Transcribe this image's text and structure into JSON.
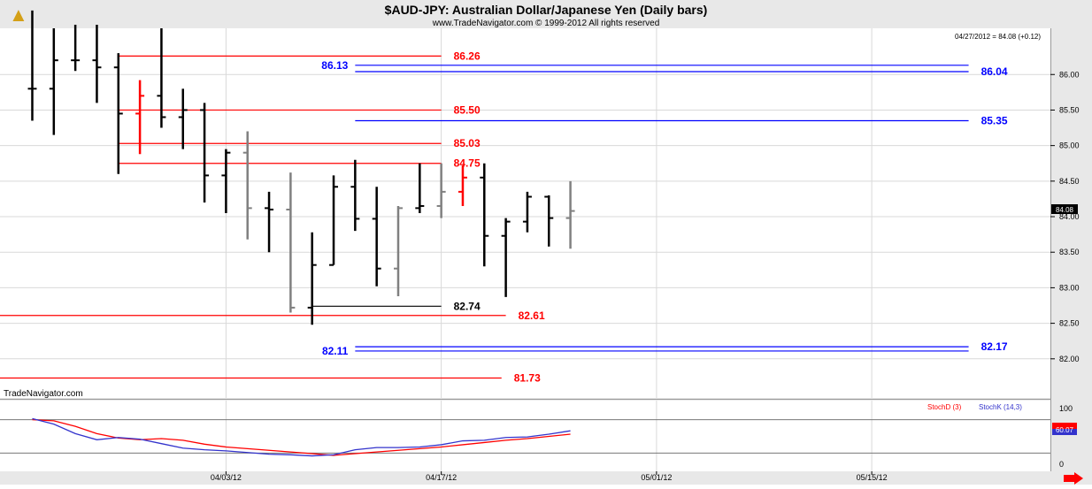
{
  "header": {
    "title": "$AUD-JPY:  Australian Dollar/Japanese Yen  (Daily bars)",
    "copyright": "www.TradeNavigator.com © 1999-2012 All rights reserved",
    "quote": "04/27/2012 = 84.08 (+0.12)",
    "watermark": "TradeNavigator.com",
    "last_price_tag": "84.08"
  },
  "colors": {
    "background": "#ffffff",
    "frame": "#e8e8e8",
    "bar_black": "#000000",
    "bar_gray": "#808080",
    "bar_red": "#ff0000",
    "level_red": "#ff0000",
    "level_blue": "#0000ff",
    "stoch_d": "#ff0000",
    "stoch_k": "#3333cc"
  },
  "chart_data": [
    {
      "type": "ohlc",
      "y_axis": {
        "range": [
          81.45,
          86.65
        ],
        "ticks": [
          "82.00",
          "82.50",
          "83.00",
          "83.50",
          "84.00",
          "84.50",
          "85.00",
          "85.50",
          "86.00"
        ]
      },
      "x_axis": {
        "tick_labels": [
          "04/03/12",
          "04/17/12",
          "05/01/12",
          "05/15/12"
        ],
        "tick_index": [
          9,
          19,
          29,
          39
        ],
        "index_range": [
          -1.5,
          47.3
        ]
      },
      "bars": [
        {
          "o": 85.8,
          "h": 86.9,
          "l": 85.35,
          "c": 85.8,
          "color": "black"
        },
        {
          "o": 85.8,
          "h": 86.65,
          "l": 85.15,
          "c": 86.2,
          "color": "black"
        },
        {
          "o": 86.2,
          "h": 86.7,
          "l": 86.05,
          "c": 86.2,
          "color": "black"
        },
        {
          "o": 86.2,
          "h": 86.7,
          "l": 85.6,
          "c": 86.1,
          "color": "black"
        },
        {
          "o": 86.1,
          "h": 86.3,
          "l": 84.6,
          "c": 85.45,
          "color": "black"
        },
        {
          "o": 85.45,
          "h": 85.92,
          "l": 84.88,
          "c": 85.7,
          "color": "red"
        },
        {
          "o": 85.7,
          "h": 86.65,
          "l": 85.25,
          "c": 85.4,
          "color": "black"
        },
        {
          "o": 85.4,
          "h": 85.8,
          "l": 84.95,
          "c": 85.5,
          "color": "black"
        },
        {
          "o": 85.5,
          "h": 85.6,
          "l": 84.2,
          "c": 84.58,
          "color": "black"
        },
        {
          "o": 84.58,
          "h": 84.95,
          "l": 84.05,
          "c": 84.9,
          "color": "black"
        },
        {
          "o": 84.9,
          "h": 85.2,
          "l": 83.68,
          "c": 84.12,
          "color": "gray"
        },
        {
          "o": 84.12,
          "h": 84.35,
          "l": 83.5,
          "c": 84.1,
          "color": "black"
        },
        {
          "o": 84.1,
          "h": 84.62,
          "l": 82.65,
          "c": 82.72,
          "color": "gray"
        },
        {
          "o": 82.72,
          "h": 83.78,
          "l": 82.48,
          "c": 83.32,
          "color": "black"
        },
        {
          "o": 83.32,
          "h": 84.58,
          "l": 83.32,
          "c": 84.42,
          "color": "black"
        },
        {
          "o": 84.42,
          "h": 84.8,
          "l": 83.8,
          "c": 83.97,
          "color": "black"
        },
        {
          "o": 83.97,
          "h": 84.42,
          "l": 83.02,
          "c": 83.27,
          "color": "black"
        },
        {
          "o": 83.27,
          "h": 84.15,
          "l": 82.88,
          "c": 84.12,
          "color": "gray"
        },
        {
          "o": 84.12,
          "h": 84.75,
          "l": 84.05,
          "c": 84.15,
          "color": "black"
        },
        {
          "o": 84.15,
          "h": 84.75,
          "l": 83.98,
          "c": 84.35,
          "color": "gray"
        },
        {
          "o": 84.35,
          "h": 84.72,
          "l": 84.15,
          "c": 84.55,
          "color": "red"
        },
        {
          "o": 84.55,
          "h": 84.75,
          "l": 83.3,
          "c": 83.73,
          "color": "black"
        },
        {
          "o": 83.73,
          "h": 83.98,
          "l": 82.87,
          "c": 83.93,
          "color": "black"
        },
        {
          "o": 83.93,
          "h": 84.35,
          "l": 83.78,
          "c": 84.28,
          "color": "black"
        },
        {
          "o": 84.28,
          "h": 84.3,
          "l": 83.58,
          "c": 83.98,
          "color": "black"
        },
        {
          "o": 83.98,
          "h": 84.5,
          "l": 83.55,
          "c": 84.08,
          "color": "gray"
        }
      ],
      "levels": [
        {
          "value": 86.26,
          "label": "86.26",
          "color": "red",
          "from": 4,
          "to": 19
        },
        {
          "value": 86.13,
          "label": "86.13",
          "color": "blue",
          "from": 15,
          "to": 43.5,
          "label_pos": "left"
        },
        {
          "value": 86.04,
          "label": "86.04",
          "color": "blue",
          "from": 15,
          "to": 43.5
        },
        {
          "value": 85.5,
          "label": "85.50",
          "color": "red",
          "from": 4,
          "to": 19
        },
        {
          "value": 85.35,
          "label": "85.35",
          "color": "blue",
          "from": 15,
          "to": 43.5
        },
        {
          "value": 85.03,
          "label": "85.03",
          "color": "red",
          "from": 4,
          "to": 19
        },
        {
          "value": 84.75,
          "label": "84.75",
          "color": "red",
          "from": 4,
          "to": 19
        },
        {
          "value": 82.74,
          "label": "82.74",
          "color": "black",
          "from": 13,
          "to": 19
        },
        {
          "value": 82.61,
          "label": "82.61",
          "color": "red",
          "from": -1.5,
          "to": 22
        },
        {
          "value": 82.17,
          "label": "82.17",
          "color": "blue",
          "from": 15,
          "to": 43.5
        },
        {
          "value": 82.11,
          "label": "82.11",
          "color": "blue",
          "from": 15,
          "to": 43.5,
          "label_pos": "left"
        },
        {
          "value": 81.73,
          "label": "81.73",
          "color": "red",
          "from": -1.5,
          "to": 21.8
        }
      ]
    },
    {
      "type": "line",
      "legend": [
        {
          "label": "StochD (3)",
          "color": "red"
        },
        {
          "label": "StochK (14,3)",
          "color": "blue"
        }
      ],
      "y_axis": {
        "range": [
          0,
          100
        ],
        "ticks": [
          "0",
          "100"
        ]
      },
      "markers": [
        {
          "label": "60.07",
          "value": 60.07
        }
      ],
      "series": [
        {
          "name": "StochD (3)",
          "color": "red",
          "values": [
            80,
            78,
            68,
            55,
            47,
            44,
            46,
            43,
            36,
            31,
            28,
            25,
            22,
            19,
            16,
            19,
            22,
            25,
            28,
            31,
            35,
            39,
            43,
            46,
            50,
            54
          ]
        },
        {
          "name": "StochK (14,3)",
          "color": "blue",
          "values": [
            82,
            72,
            55,
            44,
            48,
            45,
            37,
            29,
            26,
            24,
            21,
            18,
            17,
            15,
            17,
            26,
            30,
            30,
            31,
            35,
            42,
            43,
            48,
            49,
            54,
            60
          ]
        }
      ]
    }
  ]
}
